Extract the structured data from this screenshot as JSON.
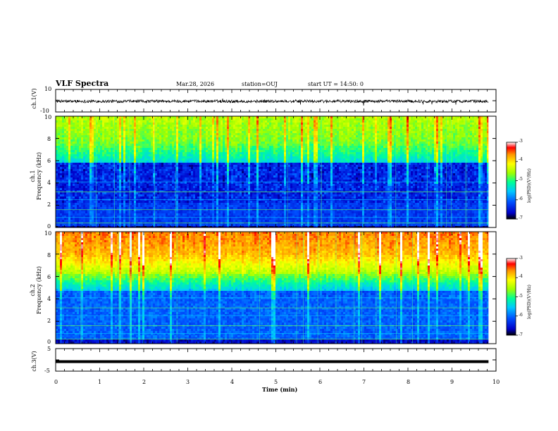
{
  "header": {
    "title": "VLF Spectra",
    "date": "Mar.28, 2026",
    "station": "station=OUJ",
    "start_ut": "start UT =  14:50: 0"
  },
  "colors": {
    "waveform": "#000000",
    "frame": "#000000",
    "colormap": [
      "#000000",
      "#0000c8",
      "#0050ff",
      "#00c8ff",
      "#00ff96",
      "#9fff00",
      "#ffff00",
      "#ff9600",
      "#ff0000",
      "#ffffff"
    ]
  },
  "chart_data": [
    {
      "name_label": "ch.1(V)",
      "type": "line",
      "ylabel": "ch.1(V)",
      "yticks": [
        "10",
        "-10"
      ],
      "ylim": [
        -10,
        10
      ],
      "xlim": [
        0,
        10
      ],
      "description_values": "Noisy broadband waveform around ~-0.5 V, amplitude approx ±2 V"
    },
    {
      "type": "heatmap",
      "ylabel_top": "ch.1",
      "ylabel": "Frequency (kHz)",
      "yticks": [
        "10",
        "8",
        "6",
        "4",
        "2",
        "0"
      ],
      "ylim": [
        0,
        10
      ],
      "xlim": [
        0,
        9.83
      ],
      "colorbar": {
        "label": "log(PSD)(V²/Hz)",
        "ticks": [
          "-3",
          "-4",
          "-5",
          "-6",
          "-7"
        ],
        "range": [
          -7,
          -3
        ]
      }
    },
    {
      "type": "heatmap",
      "ylabel_top": "ch.2",
      "ylabel": "Frequency (kHz)",
      "yticks": [
        "10",
        "8",
        "6",
        "4",
        "2",
        "0"
      ],
      "ylim": [
        0,
        10
      ],
      "xlim": [
        0,
        9.83
      ],
      "colorbar": {
        "label": "log(PSD)(V²/Hz)",
        "ticks": [
          "-3",
          "-4",
          "-5",
          "-6",
          "-7"
        ],
        "range": [
          -7,
          -3
        ]
      }
    },
    {
      "type": "line",
      "ylabel": "ch.3(V)",
      "yticks": [
        "5",
        "-5"
      ],
      "ylim": [
        -5,
        5
      ],
      "xlim": [
        0,
        10
      ],
      "values_constant": -0.8
    }
  ],
  "xaxis": {
    "label": "Time (min)",
    "ticks": [
      "0",
      "1",
      "2",
      "3",
      "4",
      "5",
      "6",
      "7",
      "8",
      "9",
      "10"
    ],
    "range": [
      0,
      10
    ]
  }
}
